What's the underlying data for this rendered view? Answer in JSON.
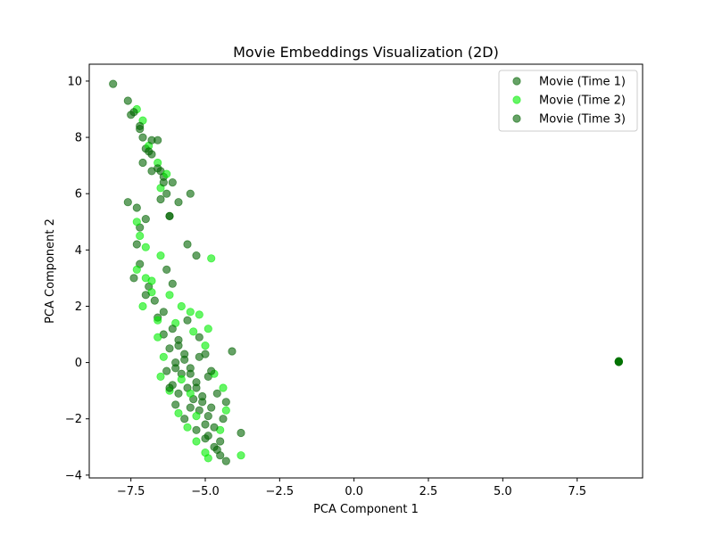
{
  "chart_data": {
    "type": "scatter",
    "title": "Movie Embeddings Visualization (2D)",
    "xlabel": "PCA Component 1",
    "ylabel": "PCA Component 2",
    "xlim": [
      -8.9,
      9.7
    ],
    "ylim": [
      -4.1,
      10.6
    ],
    "xticks": [
      -7.5,
      -5.0,
      -2.5,
      0.0,
      2.5,
      5.0,
      7.5
    ],
    "xtick_labels": [
      "−7.5",
      "−5.0",
      "−2.5",
      "0.0",
      "2.5",
      "5.0",
      "7.5"
    ],
    "yticks": [
      -4,
      -2,
      0,
      2,
      4,
      6,
      8,
      10
    ],
    "ytick_labels": [
      "−4",
      "−2",
      "0",
      "2",
      "4",
      "6",
      "8",
      "10"
    ],
    "grid": false,
    "legend_position": "top-right",
    "marker_alpha": 0.6,
    "series": [
      {
        "name": "Movie (Time 1)",
        "color": "#006400",
        "points": [
          [
            -8.1,
            9.9
          ],
          [
            -7.6,
            9.3
          ],
          [
            -7.5,
            8.8
          ],
          [
            -7.2,
            8.3
          ],
          [
            -7.1,
            8.0
          ],
          [
            -7.0,
            7.6
          ],
          [
            -6.8,
            7.4
          ],
          [
            -6.6,
            7.9
          ],
          [
            -6.5,
            6.8
          ],
          [
            -6.4,
            6.6
          ],
          [
            -6.3,
            6.0
          ],
          [
            -6.2,
            5.2
          ],
          [
            -7.6,
            5.7
          ],
          [
            -7.3,
            5.5
          ],
          [
            -7.2,
            4.8
          ],
          [
            -5.6,
            4.2
          ],
          [
            -5.3,
            3.8
          ],
          [
            -7.2,
            3.5
          ],
          [
            -7.4,
            3.0
          ],
          [
            -6.9,
            2.7
          ],
          [
            -6.7,
            2.2
          ],
          [
            -6.6,
            1.6
          ],
          [
            -6.4,
            1.0
          ],
          [
            -6.2,
            0.5
          ],
          [
            -6.0,
            0.0
          ],
          [
            -5.8,
            -0.4
          ],
          [
            -5.6,
            -0.9
          ],
          [
            -5.4,
            -1.3
          ],
          [
            -5.2,
            -1.7
          ],
          [
            -5.0,
            -2.2
          ],
          [
            -4.9,
            -2.6
          ],
          [
            -4.7,
            -3.0
          ],
          [
            -4.5,
            -3.3
          ],
          [
            -4.3,
            -3.5
          ],
          [
            -4.1,
            0.4
          ],
          [
            -3.8,
            -2.5
          ],
          [
            -5.9,
            0.8
          ],
          [
            -5.7,
            0.3
          ],
          [
            -5.5,
            -0.2
          ],
          [
            -5.3,
            -0.7
          ],
          [
            -5.1,
            -1.2
          ],
          [
            -4.8,
            -1.6
          ],
          [
            -6.3,
            -0.3
          ],
          [
            -6.1,
            -0.8
          ],
          [
            -5.9,
            -1.1
          ],
          [
            -5.5,
            -1.6
          ],
          [
            -5.2,
            0.2
          ],
          [
            -4.9,
            -0.5
          ],
          [
            8.9,
            0.03
          ],
          [
            8.9,
            0.05
          ]
        ]
      },
      {
        "name": "Movie (Time 2)",
        "color": "#00ee00",
        "points": [
          [
            -7.3,
            9.0
          ],
          [
            -7.1,
            8.6
          ],
          [
            -6.9,
            7.7
          ],
          [
            -6.6,
            7.1
          ],
          [
            -6.3,
            6.7
          ],
          [
            -6.5,
            6.2
          ],
          [
            -7.3,
            5.0
          ],
          [
            -7.2,
            4.5
          ],
          [
            -7.0,
            4.1
          ],
          [
            -6.5,
            3.8
          ],
          [
            -7.3,
            3.3
          ],
          [
            -7.0,
            3.0
          ],
          [
            -6.8,
            2.5
          ],
          [
            -7.1,
            2.0
          ],
          [
            -6.6,
            1.5
          ],
          [
            -6.2,
            2.4
          ],
          [
            -5.8,
            2.0
          ],
          [
            -5.5,
            1.8
          ],
          [
            -5.2,
            1.7
          ],
          [
            -4.9,
            1.2
          ],
          [
            -4.8,
            3.7
          ],
          [
            -6.6,
            0.9
          ],
          [
            -6.4,
            0.2
          ],
          [
            -6.5,
            -0.5
          ],
          [
            -6.2,
            -1.0
          ],
          [
            -5.9,
            -1.8
          ],
          [
            -5.6,
            -2.3
          ],
          [
            -5.3,
            -2.8
          ],
          [
            -5.0,
            -3.2
          ],
          [
            -4.9,
            -3.4
          ],
          [
            -3.8,
            -3.3
          ],
          [
            -4.5,
            -2.4
          ],
          [
            -4.3,
            -1.7
          ],
          [
            -4.4,
            -0.9
          ],
          [
            -4.7,
            -0.4
          ],
          [
            -5.0,
            0.6
          ],
          [
            -5.4,
            1.1
          ],
          [
            -6.0,
            1.4
          ],
          [
            -5.8,
            -0.6
          ],
          [
            -5.5,
            -1.1
          ],
          [
            -5.3,
            -1.9
          ],
          [
            -6.8,
            2.9
          ],
          [
            8.9,
            0.03
          ]
        ]
      },
      {
        "name": "Movie (Time 3)",
        "color": "#006400",
        "points": [
          [
            -7.4,
            8.9
          ],
          [
            -7.2,
            8.4
          ],
          [
            -6.8,
            7.9
          ],
          [
            -6.9,
            7.5
          ],
          [
            -6.6,
            6.9
          ],
          [
            -6.4,
            6.4
          ],
          [
            -6.1,
            6.4
          ],
          [
            -5.9,
            5.7
          ],
          [
            -5.5,
            6.0
          ],
          [
            -7.1,
            7.1
          ],
          [
            -6.8,
            6.8
          ],
          [
            -6.5,
            5.8
          ],
          [
            -7.0,
            5.1
          ],
          [
            -6.2,
            5.2
          ],
          [
            -7.3,
            4.2
          ],
          [
            -6.3,
            3.3
          ],
          [
            -6.1,
            2.8
          ],
          [
            -7.0,
            2.4
          ],
          [
            -6.4,
            1.8
          ],
          [
            -6.1,
            1.2
          ],
          [
            -5.9,
            0.6
          ],
          [
            -5.7,
            0.1
          ],
          [
            -5.5,
            -0.4
          ],
          [
            -5.3,
            -0.9
          ],
          [
            -5.1,
            -1.4
          ],
          [
            -4.9,
            -1.9
          ],
          [
            -4.7,
            -2.3
          ],
          [
            -4.5,
            -2.8
          ],
          [
            -4.4,
            -2.0
          ],
          [
            -4.6,
            -1.1
          ],
          [
            -4.8,
            -0.3
          ],
          [
            -5.0,
            0.3
          ],
          [
            -5.2,
            0.9
          ],
          [
            -5.6,
            1.5
          ],
          [
            -6.0,
            -0.2
          ],
          [
            -6.2,
            -0.9
          ],
          [
            -6.0,
            -1.5
          ],
          [
            -5.7,
            -2.0
          ],
          [
            -5.3,
            -2.4
          ],
          [
            -5.0,
            -2.7
          ],
          [
            -4.6,
            -3.1
          ],
          [
            -4.3,
            -1.4
          ],
          [
            8.9,
            0.03
          ],
          [
            8.9,
            0.02
          ]
        ]
      }
    ]
  }
}
